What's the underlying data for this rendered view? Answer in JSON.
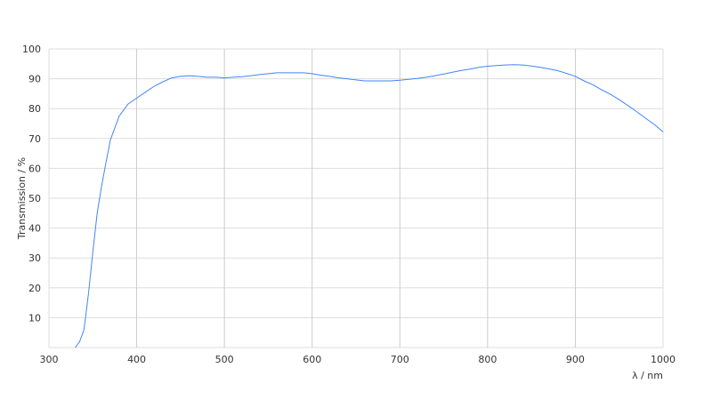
{
  "chart_data": {
    "type": "line",
    "title": "",
    "xlabel": "λ / nm",
    "ylabel": "Transmission / %",
    "xlim": [
      300,
      1000
    ],
    "ylim": [
      0,
      100
    ],
    "xticks": [
      300,
      400,
      500,
      600,
      700,
      800,
      900,
      1000
    ],
    "yticks": [
      10,
      20,
      30,
      40,
      50,
      60,
      70,
      80,
      90,
      100
    ],
    "grid": true,
    "line_color": "#4285f4",
    "series": [
      {
        "x": [
          330,
          335,
          340,
          345,
          350,
          355,
          360,
          365,
          370,
          380,
          390,
          400,
          410,
          420,
          430,
          440,
          450,
          460,
          470,
          480,
          490,
          500,
          510,
          520,
          530,
          540,
          550,
          560,
          570,
          580,
          590,
          600,
          610,
          620,
          630,
          640,
          650,
          660,
          670,
          680,
          690,
          700,
          710,
          720,
          730,
          740,
          750,
          760,
          770,
          780,
          790,
          800,
          810,
          820,
          830,
          840,
          850,
          860,
          870,
          880,
          890,
          900,
          910,
          920,
          930,
          940,
          950,
          960,
          970,
          980,
          990,
          1000
        ],
        "y": [
          0,
          2,
          6,
          18,
          32,
          45,
          54,
          62,
          69.5,
          77.5,
          81.5,
          83.5,
          85.5,
          87.5,
          89,
          90.3,
          90.8,
          91,
          90.8,
          90.5,
          90.5,
          90.3,
          90.5,
          90.7,
          91,
          91.4,
          91.7,
          92,
          92,
          92,
          92,
          91.7,
          91.2,
          90.8,
          90.3,
          90,
          89.6,
          89.3,
          89.3,
          89.3,
          89.3,
          89.5,
          89.8,
          90.1,
          90.5,
          91,
          91.6,
          92.2,
          92.8,
          93.2,
          93.8,
          94.2,
          94.4,
          94.6,
          94.7,
          94.6,
          94.3,
          93.8,
          93.3,
          92.7,
          91.8,
          90.8,
          89.3,
          88,
          86.3,
          84.8,
          83,
          81,
          79,
          76.8,
          74.7,
          72.2
        ]
      }
    ]
  }
}
